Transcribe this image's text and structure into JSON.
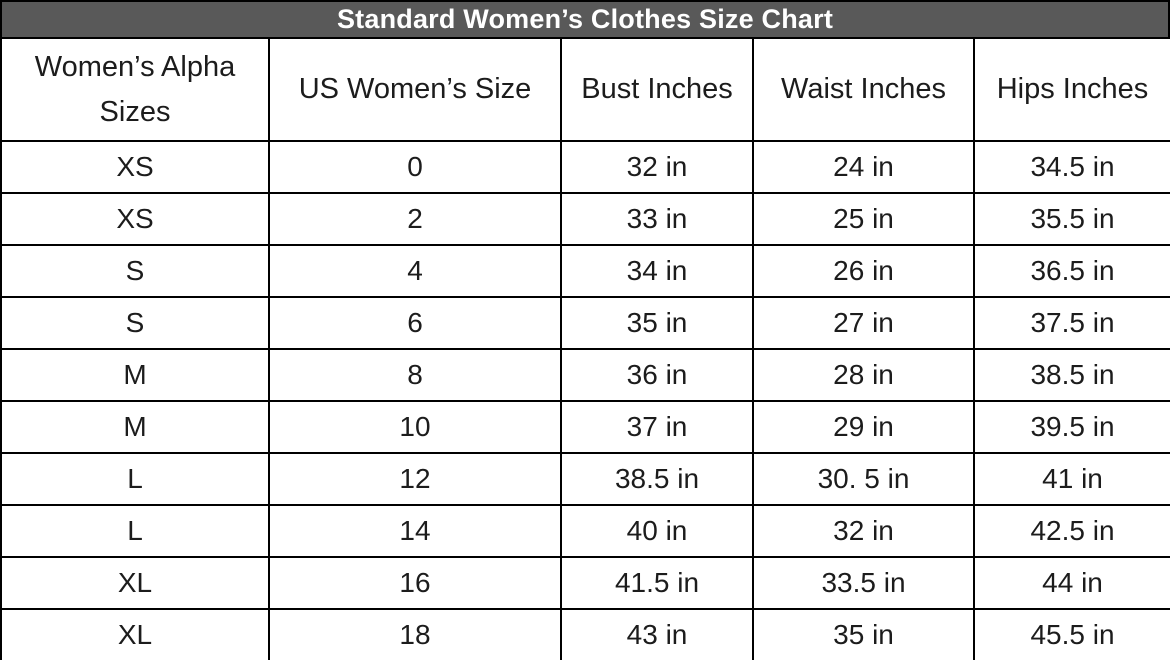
{
  "title": "Standard Women’s Clothes Size Chart",
  "colors": {
    "title_background": "#595959",
    "title_text": "#ffffff",
    "border": "#000000",
    "cell_background": "#ffffff",
    "cell_text": "#1c1c1c"
  },
  "table": {
    "columns": [
      "Women’s Alpha Sizes",
      "US Women’s Size",
      "Bust Inches",
      "Waist Inches",
      "Hips Inches"
    ],
    "rows": [
      [
        "XS",
        "0",
        "32 in",
        "24 in",
        "34.5 in"
      ],
      [
        "XS",
        "2",
        "33 in",
        "25 in",
        "35.5 in"
      ],
      [
        "S",
        "4",
        "34 in",
        "26 in",
        "36.5 in"
      ],
      [
        "S",
        "6",
        "35 in",
        "27 in",
        "37.5 in"
      ],
      [
        "M",
        "8",
        "36 in",
        "28 in",
        "38.5 in"
      ],
      [
        "M",
        "10",
        "37 in",
        "29 in",
        "39.5 in"
      ],
      [
        "L",
        "12",
        "38.5 in",
        "30. 5 in",
        "41 in"
      ],
      [
        "L",
        "14",
        "40 in",
        "32 in",
        "42.5 in"
      ],
      [
        "XL",
        "16",
        "41.5 in",
        "33.5 in",
        "44 in"
      ],
      [
        "XL",
        "18",
        "43 in",
        "35 in",
        "45.5 in"
      ]
    ]
  },
  "chart_data": {
    "type": "table",
    "title": "Standard Women’s Clothes Size Chart",
    "columns": [
      "Women’s Alpha Sizes",
      "US Women’s Size",
      "Bust Inches",
      "Waist Inches",
      "Hips Inches"
    ],
    "rows": [
      [
        "XS",
        0,
        "32 in",
        "24 in",
        "34.5 in"
      ],
      [
        "XS",
        2,
        "33 in",
        "25 in",
        "35.5 in"
      ],
      [
        "S",
        4,
        "34 in",
        "26 in",
        "36.5 in"
      ],
      [
        "S",
        6,
        "35 in",
        "27 in",
        "37.5 in"
      ],
      [
        "M",
        8,
        "36 in",
        "28 in",
        "38.5 in"
      ],
      [
        "M",
        10,
        "37 in",
        "29 in",
        "39.5 in"
      ],
      [
        "L",
        12,
        "38.5 in",
        "30. 5 in",
        "41 in"
      ],
      [
        "L",
        14,
        "40 in",
        "32 in",
        "42.5 in"
      ],
      [
        "XL",
        16,
        "41.5 in",
        "33.5 in",
        "44 in"
      ],
      [
        "XL",
        18,
        "43 in",
        "35 in",
        "45.5 in"
      ]
    ]
  }
}
